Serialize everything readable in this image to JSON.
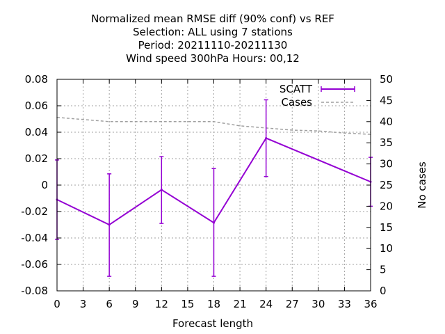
{
  "chart_data": {
    "type": "line",
    "title_lines": [
      "Normalized mean RMSE diff (90% conf) vs REF",
      "Selection: ALL using     7 stations",
      "Period: 20211110-20211130",
      "Wind speed 300hPa   Hours:  00,12"
    ],
    "xlabel": "Forecast length",
    "ylabel_right": "No cases",
    "x_ticks": [
      "0",
      "3",
      "6",
      "9",
      "12",
      "15",
      "18",
      "21",
      "24",
      "27",
      "30",
      "33",
      "36"
    ],
    "y_ticks": [
      "0.08",
      "0.06",
      "0.04",
      "0.02",
      "0",
      "-0.02",
      "-0.04",
      "-0.06",
      "-0.08"
    ],
    "y2_ticks": [
      "50",
      "45",
      "40",
      "35",
      "30",
      "25",
      "20",
      "15",
      "10",
      "5",
      "0"
    ],
    "xlim": [
      0,
      36
    ],
    "ylim": [
      -0.08,
      0.08
    ],
    "y2lim": [
      0,
      50
    ],
    "grid": true,
    "legend_position": "top-right",
    "colors": {
      "scatt": "#9400d3",
      "cases": "#a0a0a0"
    },
    "series": [
      {
        "name": "SCATT",
        "axis": "left",
        "x": [
          0,
          6,
          12,
          18,
          24,
          36
        ],
        "y": [
          -0.011,
          -0.03,
          -0.0035,
          -0.0285,
          0.0355,
          0.0025
        ],
        "err_low": [
          -0.041,
          -0.069,
          -0.029,
          -0.069,
          0.0065,
          -0.016
        ],
        "err_high": [
          0.019,
          0.0085,
          0.0215,
          0.0125,
          0.0645,
          0.021
        ]
      },
      {
        "name": "Cases",
        "axis": "right",
        "x": [
          0,
          3,
          6,
          9,
          12,
          15,
          18,
          21,
          24,
          27,
          30,
          33,
          36
        ],
        "y": [
          41,
          40.5,
          40,
          40,
          40,
          40,
          40,
          39,
          38.5,
          38,
          37.8,
          37.3,
          37
        ]
      }
    ]
  }
}
